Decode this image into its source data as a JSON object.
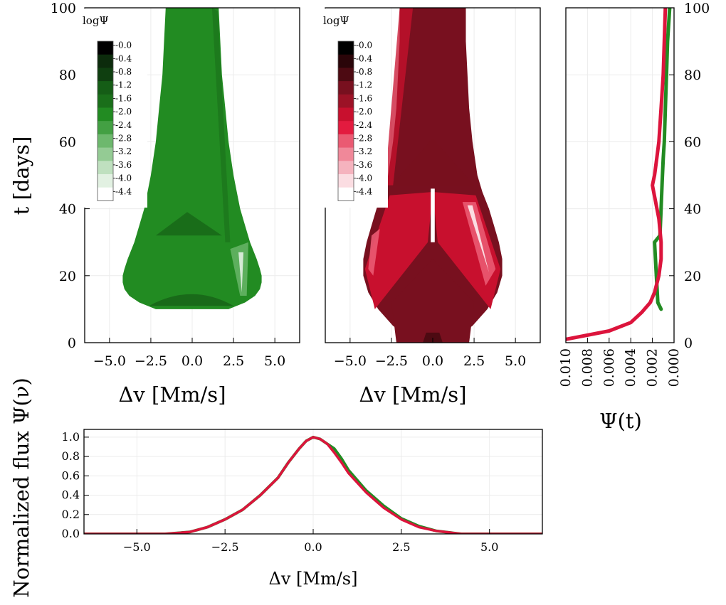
{
  "chart_data": [
    {
      "id": "green-map",
      "type": "heatmap",
      "xlabel": "Δv [Mm/s]",
      "ylabel": "t [days]",
      "xticks": [
        "−5.0",
        "−2.5",
        "0.0",
        "2.5",
        "5.0"
      ],
      "yticks": [
        "0",
        "20",
        "40",
        "60",
        "80",
        "100"
      ],
      "xlim": [
        -6.5,
        6.5
      ],
      "ylim": [
        0,
        100
      ],
      "colorbar": {
        "title": "logΨ",
        "labels": [
          "-0.0",
          "-0.4",
          "-0.8",
          "-1.2",
          "-1.6",
          "-2.0",
          "-2.4",
          "-2.8",
          "-3.2",
          "-3.6",
          "-4.0",
          "-4.4"
        ],
        "colors": [
          "#000000",
          "#0c2b0c",
          "#0f3f10",
          "#155d16",
          "#1a6f1a",
          "#228b22",
          "#43a043",
          "#6db86d",
          "#94cb94",
          "#bfe0bf",
          "#e2f1e2",
          "#ffffff"
        ]
      },
      "envelope": {
        "t": [
          10,
          12,
          14,
          16,
          18,
          20,
          22,
          25,
          30,
          35,
          40,
          45,
          50,
          60,
          70,
          80,
          90,
          100
        ],
        "dv": [
          2.2,
          3.2,
          3.8,
          4.1,
          4.2,
          4.2,
          4.1,
          3.9,
          3.5,
          3.2,
          2.9,
          2.7,
          2.5,
          2.2,
          2.0,
          1.8,
          1.7,
          1.6
        ]
      }
    },
    {
      "id": "red-map",
      "type": "heatmap",
      "xlabel": "Δv [Mm/s]",
      "xticks": [
        "−5.0",
        "−2.5",
        "0.0",
        "2.5",
        "5.0"
      ],
      "yticks": [],
      "xlim": [
        -6.5,
        6.5
      ],
      "ylim": [
        0,
        100
      ],
      "colorbar": {
        "title": "logΨ",
        "labels": [
          "-0.0",
          "-0.4",
          "-0.8",
          "-1.2",
          "-1.6",
          "-2.0",
          "-2.4",
          "-2.8",
          "-3.2",
          "-3.6",
          "-4.0",
          "-4.4"
        ],
        "colors": [
          "#000000",
          "#2a0509",
          "#4d0a12",
          "#78101f",
          "#9c1226",
          "#c8102e",
          "#e31b3f",
          "#ea5a72",
          "#f08899",
          "#f5b3be",
          "#fbdde2",
          "#ffffff"
        ]
      },
      "envelope": {
        "t": [
          0,
          2,
          5,
          10,
          15,
          20,
          25,
          30,
          35,
          40,
          45,
          50,
          60,
          70,
          80,
          90,
          100
        ],
        "dv": [
          0.8,
          1.5,
          2.4,
          3.3,
          3.9,
          4.2,
          4.2,
          4.0,
          3.7,
          3.4,
          3.0,
          2.7,
          2.4,
          2.2,
          2.1,
          2.0,
          2.0
        ]
      }
    },
    {
      "id": "psi-t",
      "type": "line",
      "xlabel": "Ψ(t)",
      "xticks": [
        "0.010",
        "0.008",
        "0.006",
        "0.004",
        "0.002",
        "0.000"
      ],
      "yticks": [
        "0",
        "20",
        "40",
        "60",
        "80",
        "100"
      ],
      "xlim": [
        0.01,
        0.0
      ],
      "ylim": [
        0,
        100
      ],
      "series": [
        {
          "color": "#228b22",
          "x": [
            0.0012,
            0.0015,
            0.0018,
            0.0013,
            0.0012,
            0.0011,
            0.001,
            0.0009,
            0.0008,
            0.0007,
            0.0006,
            0.0005,
            0.0004
          ],
          "y": [
            10,
            12,
            30,
            32,
            40,
            48,
            55,
            60,
            70,
            80,
            90,
            95,
            100
          ]
        },
        {
          "color": "#dc143c",
          "x": [
            0.01,
            0.006,
            0.004,
            0.003,
            0.0022,
            0.0018,
            0.0014,
            0.0012,
            0.0012,
            0.0014,
            0.002,
            0.0018,
            0.0016,
            0.0014,
            0.0012,
            0.001,
            0.0009,
            0.0008
          ],
          "y": [
            1,
            3.5,
            6,
            9,
            12,
            15,
            20,
            25,
            30,
            37,
            47,
            50,
            55,
            60,
            70,
            80,
            90,
            100
          ]
        }
      ]
    },
    {
      "id": "flux",
      "type": "line",
      "xlabel": "Δv [Mm/s]",
      "ylabel": "Normalized flux Ψ(ν)",
      "xticks": [
        "−5.0",
        "−2.5",
        "0.0",
        "2.5",
        "5.0"
      ],
      "yticks": [
        "0.0",
        "0.2",
        "0.4",
        "0.6",
        "0.8",
        "1.0"
      ],
      "xlim": [
        -6.5,
        6.5
      ],
      "ylim": [
        0,
        1.08
      ],
      "series": [
        {
          "color": "#228b22",
          "x": [
            -6.5,
            -4.2,
            -3.5,
            -3.0,
            -2.5,
            -2.0,
            -1.5,
            -1.0,
            -0.7,
            -0.4,
            -0.2,
            0.0,
            0.2,
            0.4,
            0.6,
            0.8,
            1.0,
            1.5,
            2.0,
            2.5,
            3.0,
            3.5,
            4.2,
            6.5
          ],
          "y": [
            0,
            0,
            0.02,
            0.07,
            0.15,
            0.25,
            0.4,
            0.58,
            0.74,
            0.88,
            0.96,
            1.0,
            0.98,
            0.93,
            0.88,
            0.78,
            0.66,
            0.45,
            0.29,
            0.16,
            0.08,
            0.03,
            0,
            0
          ]
        },
        {
          "color": "#dc143c",
          "x": [
            -6.5,
            -4.2,
            -3.5,
            -3.0,
            -2.5,
            -2.0,
            -1.5,
            -1.0,
            -0.7,
            -0.4,
            -0.2,
            0.0,
            0.2,
            0.4,
            0.6,
            0.8,
            1.0,
            1.5,
            2.0,
            2.5,
            3.0,
            3.5,
            4.2,
            6.5
          ],
          "y": [
            0,
            0,
            0.02,
            0.07,
            0.15,
            0.25,
            0.4,
            0.58,
            0.74,
            0.88,
            0.96,
            1.0,
            0.98,
            0.93,
            0.84,
            0.74,
            0.63,
            0.43,
            0.27,
            0.15,
            0.07,
            0.03,
            0,
            0
          ]
        }
      ]
    }
  ]
}
